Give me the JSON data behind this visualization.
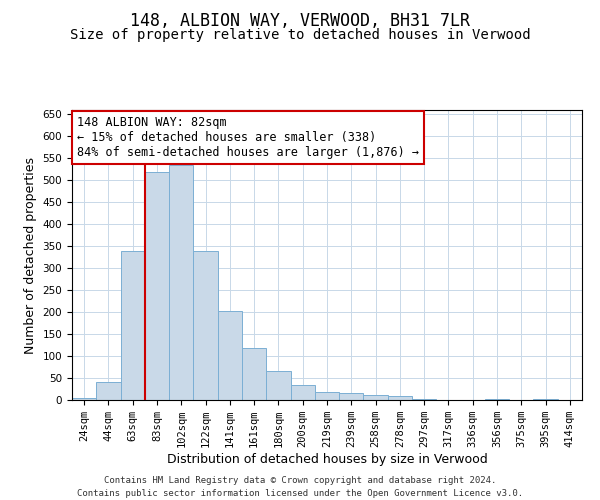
{
  "title": "148, ALBION WAY, VERWOOD, BH31 7LR",
  "subtitle": "Size of property relative to detached houses in Verwood",
  "xlabel": "Distribution of detached houses by size in Verwood",
  "ylabel": "Number of detached properties",
  "categories": [
    "24sqm",
    "44sqm",
    "63sqm",
    "83sqm",
    "102sqm",
    "122sqm",
    "141sqm",
    "161sqm",
    "180sqm",
    "200sqm",
    "219sqm",
    "239sqm",
    "258sqm",
    "278sqm",
    "297sqm",
    "317sqm",
    "336sqm",
    "356sqm",
    "375sqm",
    "395sqm",
    "414sqm"
  ],
  "values": [
    5,
    42,
    340,
    520,
    535,
    340,
    203,
    118,
    67,
    35,
    18,
    17,
    11,
    10,
    2,
    0,
    0,
    3,
    0,
    2,
    1
  ],
  "bar_color": "#c9d9e8",
  "bar_edge_color": "#7bafd4",
  "vline_x_index": 3,
  "vline_color": "#cc0000",
  "annotation_line1": "148 ALBION WAY: 82sqm",
  "annotation_line2": "← 15% of detached houses are smaller (338)",
  "annotation_line3": "84% of semi-detached houses are larger (1,876) →",
  "annotation_box_color": "#ffffff",
  "annotation_box_edge_color": "#cc0000",
  "ylim": [
    0,
    660
  ],
  "yticks": [
    0,
    50,
    100,
    150,
    200,
    250,
    300,
    350,
    400,
    450,
    500,
    550,
    600,
    650
  ],
  "footer_line1": "Contains HM Land Registry data © Crown copyright and database right 2024.",
  "footer_line2": "Contains public sector information licensed under the Open Government Licence v3.0.",
  "bg_color": "#ffffff",
  "grid_color": "#c8d8e8",
  "title_fontsize": 12,
  "subtitle_fontsize": 10,
  "xlabel_fontsize": 9,
  "ylabel_fontsize": 9,
  "tick_fontsize": 7.5,
  "annotation_fontsize": 8.5,
  "footer_fontsize": 6.5
}
